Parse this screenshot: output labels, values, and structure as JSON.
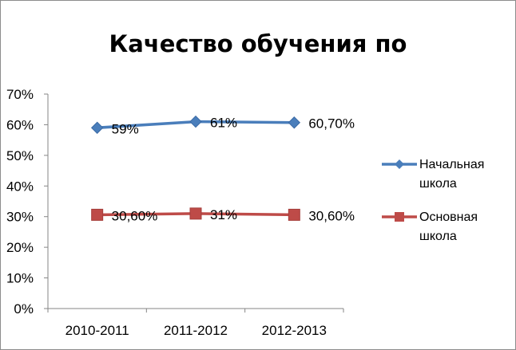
{
  "chart_data": {
    "type": "line",
    "title": "Качество обучения по",
    "xlabel": "",
    "ylabel": "",
    "categories": [
      "2010-2011",
      "2011-2012",
      "2012-2013"
    ],
    "ylim": [
      0,
      70
    ],
    "y_ticks": [
      "0%",
      "10%",
      "20%",
      "30%",
      "40%",
      "50%",
      "60%",
      "70%"
    ],
    "grid": false,
    "legend_position": "right",
    "series": [
      {
        "name": "Начальная школа",
        "name_lines": [
          "Начальная",
          "школа"
        ],
        "values": [
          59,
          61,
          60.7
        ],
        "labels": [
          "59%",
          "61%",
          "60,70%"
        ],
        "color": "#4a7ebb",
        "marker": "diamond"
      },
      {
        "name": "Основная школа",
        "name_lines": [
          "Основная",
          "школа"
        ],
        "values": [
          30.6,
          31,
          30.6
        ],
        "labels": [
          "30,60%",
          "31%",
          "30,60%"
        ],
        "color": "#be4b48",
        "marker": "square"
      }
    ]
  }
}
